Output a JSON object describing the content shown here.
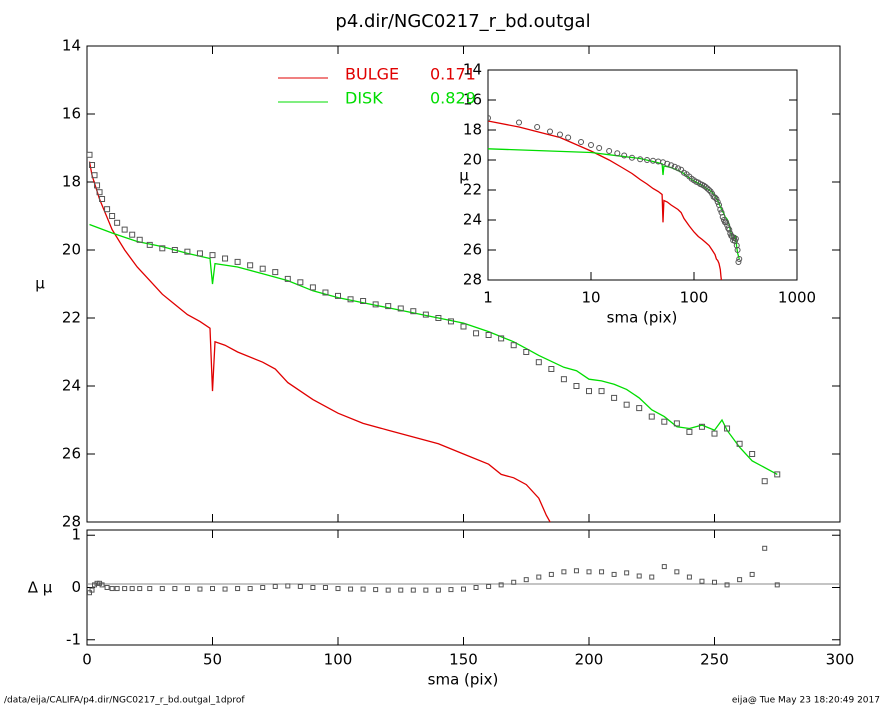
{
  "title": "p4.dir/NGC0217_r_bd.outgal",
  "footer_left": "/data/eija/CALIFA/p4.dir/NGC0217_r_bd.outgal_1dprof",
  "footer_right": "eija@  Tue May 23 18:20:49 2017",
  "chart_data": [
    {
      "type": "line",
      "ylabel": "μ",
      "ylim": [
        28,
        14
      ],
      "yticks": [
        14,
        16,
        18,
        20,
        22,
        24,
        26,
        28
      ],
      "points": {
        "color": "#555555",
        "x": [
          1,
          2,
          3,
          4,
          5,
          6,
          8,
          10,
          12,
          15,
          18,
          21,
          25,
          30,
          35,
          40,
          45,
          50,
          55,
          60,
          65,
          70,
          75,
          80,
          85,
          90,
          95,
          100,
          105,
          110,
          115,
          120,
          125,
          130,
          135,
          140,
          145,
          150,
          155,
          160,
          165,
          170,
          175,
          180,
          185,
          190,
          195,
          200,
          205,
          210,
          215,
          220,
          225,
          230,
          235,
          240,
          245,
          250,
          255,
          260,
          265,
          270,
          275
        ],
        "values": [
          17.2,
          17.5,
          17.8,
          18.1,
          18.3,
          18.5,
          18.8,
          19.0,
          19.2,
          19.4,
          19.55,
          19.7,
          19.85,
          19.95,
          20.0,
          20.05,
          20.1,
          20.15,
          20.25,
          20.35,
          20.45,
          20.55,
          20.65,
          20.85,
          20.95,
          21.1,
          21.25,
          21.35,
          21.45,
          21.5,
          21.6,
          21.65,
          21.72,
          21.8,
          21.9,
          22.0,
          22.1,
          22.25,
          22.45,
          22.5,
          22.6,
          22.8,
          23.0,
          23.3,
          23.5,
          23.8,
          24.0,
          24.15,
          24.15,
          24.35,
          24.55,
          24.65,
          24.9,
          25.05,
          25.1,
          25.35,
          25.2,
          25.4,
          25.25,
          25.7,
          26.0,
          26.8,
          26.6
        ]
      },
      "series": [
        {
          "name": "BULGE",
          "fraction": 0.171,
          "color": "#e00000",
          "x": [
            1,
            2,
            5,
            10,
            15,
            20,
            25,
            30,
            35,
            40,
            45,
            49,
            50,
            51,
            55,
            60,
            70,
            75,
            80,
            90,
            100,
            110,
            120,
            130,
            140,
            150,
            160,
            165,
            170,
            175,
            180,
            183,
            186
          ],
          "values": [
            17.4,
            17.8,
            18.5,
            19.4,
            20.0,
            20.5,
            20.9,
            21.3,
            21.6,
            21.9,
            22.1,
            22.3,
            24.15,
            22.7,
            22.8,
            23.0,
            23.3,
            23.5,
            23.9,
            24.4,
            24.8,
            25.1,
            25.3,
            25.5,
            25.7,
            26.0,
            26.3,
            26.6,
            26.7,
            26.9,
            27.3,
            27.8,
            28.2
          ]
        },
        {
          "name": "DISK",
          "fraction": 0.829,
          "color": "#00dd00",
          "x": [
            1,
            10,
            20,
            30,
            40,
            49,
            50,
            51,
            60,
            70,
            80,
            90,
            100,
            110,
            120,
            130,
            140,
            150,
            160,
            170,
            175,
            180,
            190,
            195,
            200,
            205,
            210,
            215,
            220,
            225,
            230,
            235,
            240,
            245,
            250,
            253,
            255,
            260,
            265,
            275
          ],
          "values": [
            19.25,
            19.5,
            19.75,
            19.9,
            20.1,
            20.25,
            21.0,
            20.4,
            20.5,
            20.7,
            20.9,
            21.2,
            21.4,
            21.55,
            21.7,
            21.85,
            22.0,
            22.15,
            22.4,
            22.7,
            22.9,
            23.1,
            23.45,
            23.55,
            23.8,
            23.85,
            23.95,
            24.1,
            24.35,
            24.7,
            24.9,
            25.2,
            25.25,
            25.15,
            25.3,
            25.0,
            25.3,
            25.8,
            26.2,
            26.6
          ]
        }
      ]
    },
    {
      "type": "scatter",
      "ylabel": "Δ μ",
      "xlabel": "sma (pix)",
      "xlim": [
        0,
        300
      ],
      "xticks": [
        0,
        50,
        100,
        150,
        200,
        250,
        300
      ],
      "ylim": [
        -1.1,
        1.1
      ],
      "yticks": [
        -1,
        0,
        1
      ],
      "values": [
        -0.1,
        -0.05,
        0.05,
        0.08,
        0.08,
        0.05,
        0.0,
        -0.02,
        -0.02,
        -0.02,
        -0.02,
        -0.02,
        -0.02,
        -0.02,
        -0.02,
        -0.02,
        -0.03,
        -0.02,
        -0.03,
        -0.02,
        -0.02,
        0.0,
        0.02,
        0.03,
        0.02,
        0.0,
        0.0,
        -0.02,
        -0.03,
        -0.03,
        -0.04,
        -0.05,
        -0.05,
        -0.05,
        -0.05,
        -0.05,
        -0.04,
        -0.03,
        0.0,
        0.02,
        0.05,
        0.1,
        0.15,
        0.2,
        0.25,
        0.3,
        0.32,
        0.3,
        0.3,
        0.25,
        0.28,
        0.22,
        0.2,
        0.4,
        0.3,
        0.2,
        0.12,
        0.1,
        0.05,
        0.15,
        0.25,
        0.75,
        0.05
      ]
    },
    {
      "type": "line",
      "xlog": true,
      "xlabel": "sma (pix)",
      "ylabel": "μ",
      "xlim": [
        1,
        1000
      ],
      "xticks": [
        1,
        10,
        100,
        1000
      ],
      "ylim": [
        28,
        14
      ],
      "yticks": [
        14,
        16,
        18,
        20,
        22,
        24,
        26,
        28
      ]
    }
  ]
}
